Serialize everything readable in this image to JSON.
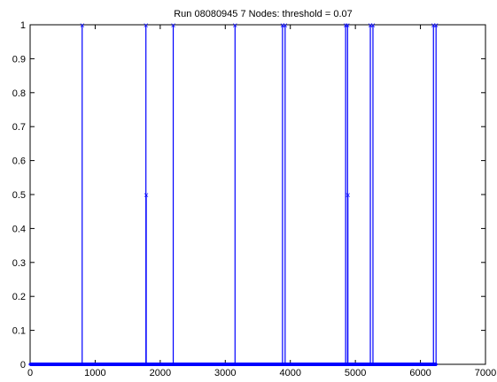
{
  "chart_data": {
    "type": "line",
    "title": "Run 08080945 7 Nodes: threshold = 0.07",
    "xlabel": "",
    "ylabel": "",
    "xlim": [
      0,
      7000
    ],
    "ylim": [
      0,
      1
    ],
    "xticks": [
      0,
      1000,
      2000,
      3000,
      4000,
      5000,
      6000,
      7000
    ],
    "yticks": [
      0,
      0.1,
      0.2,
      0.3,
      0.4,
      0.5,
      0.6,
      0.7,
      0.8,
      0.9,
      1
    ],
    "grid": false,
    "legend": "none",
    "color": "#0000ff",
    "series": [
      {
        "x": [
          0,
          6250
        ],
        "y": [
          0,
          0
        ],
        "spikes": [
          {
            "x": 800,
            "y": 1
          },
          {
            "x": 1780,
            "y": 1
          },
          {
            "x": 1785,
            "y": 0.5
          },
          {
            "x": 2200,
            "y": 1
          },
          {
            "x": 3150,
            "y": 1
          },
          {
            "x": 3880,
            "y": 1
          },
          {
            "x": 3920,
            "y": 1
          },
          {
            "x": 4850,
            "y": 1
          },
          {
            "x": 4880,
            "y": 1
          },
          {
            "x": 4885,
            "y": 0.5
          },
          {
            "x": 5230,
            "y": 1
          },
          {
            "x": 5270,
            "y": 1
          },
          {
            "x": 6200,
            "y": 1
          },
          {
            "x": 6240,
            "y": 1
          }
        ]
      }
    ]
  }
}
